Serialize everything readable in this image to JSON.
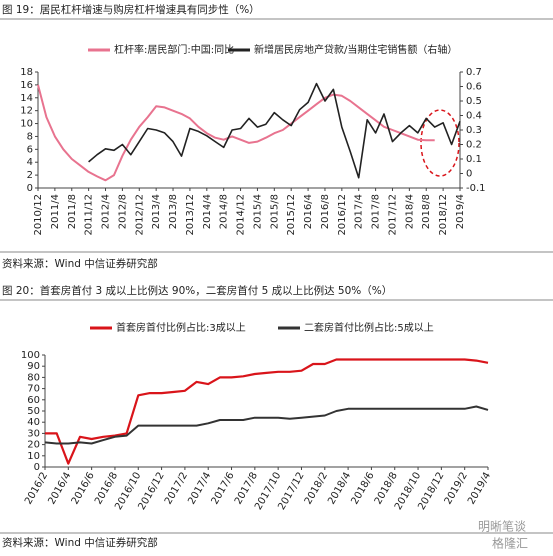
{
  "chart_data": [
    {
      "type": "line",
      "title": "图 19：居民杠杆增速与购房杠杆增速具有同步性（%）",
      "source": "资料来源：Wind 中信证券研究部",
      "categories": [
        "2010/12",
        null,
        "2011/4",
        null,
        "2011/8",
        null,
        "2011/12",
        null,
        "2012/4",
        null,
        "2012/8",
        null,
        "2012/12",
        null,
        "2013/4",
        null,
        "2013/8",
        null,
        "2013/12",
        null,
        "2014/4",
        null,
        "2014/8",
        null,
        "2014/12",
        null,
        "2015/4",
        null,
        "2015/8",
        null,
        "2015/12",
        null,
        "2016/4",
        null,
        "2016/8",
        null,
        "2016/12",
        null,
        "2017/4",
        null,
        "2017/8",
        null,
        "2017/12",
        null,
        "2018/4",
        null,
        "2018/8",
        null,
        "2018/12",
        null,
        "2019/4"
      ],
      "series": [
        {
          "name": "杠杆率:居民部门:中国:同比",
          "color": "#e8738f",
          "values": [
            16,
            11,
            8,
            6,
            4.5,
            3.5,
            2.5,
            1.8,
            1.2,
            2,
            5,
            7.5,
            9.5,
            11,
            12.7,
            12.5,
            12,
            11.5,
            10.8,
            9.5,
            8.5,
            7.8,
            7.5,
            8,
            7.5,
            7,
            7.2,
            7.8,
            8.5,
            9,
            10,
            11,
            12,
            13,
            14,
            14.5,
            14.3,
            13.5,
            12.5,
            11.5,
            10.5,
            9.5,
            9,
            8.5,
            8,
            7.5,
            7.4,
            7.4,
            null,
            null,
            null
          ]
        },
        {
          "name": "新增居民房地产贷款/当期住宅销售额（右轴）",
          "color": "#222222",
          "axis": "y2",
          "values": [
            null,
            null,
            null,
            null,
            null,
            null,
            0.08,
            0.13,
            0.17,
            0.16,
            0.2,
            0.13,
            0.22,
            0.31,
            0.3,
            0.28,
            0.22,
            0.12,
            0.31,
            0.29,
            0.26,
            0.22,
            0.18,
            0.3,
            0.31,
            0.38,
            0.32,
            0.34,
            0.42,
            0.37,
            0.33,
            0.44,
            0.49,
            0.62,
            0.5,
            0.58,
            0.32,
            0.15,
            -0.03,
            0.37,
            0.28,
            0.41,
            0.22,
            0.28,
            0.33,
            0.28,
            0.38,
            0.32,
            0.35,
            0.2,
            0.36
          ]
        }
      ],
      "ylim": [
        0,
        18
      ],
      "yticks": [
        0,
        2,
        4,
        6,
        8,
        10,
        12,
        14,
        16,
        18
      ],
      "y2lim": [
        -0.1,
        0.7
      ],
      "y2ticks": [
        -0.1,
        0,
        0.1,
        0.2,
        0.3,
        0.4,
        0.5,
        0.6,
        0.7
      ]
    },
    {
      "type": "line",
      "title": "图 20：首套房首付 3 成以上比例达 90%，二套房首付 5 成以上比例达 50%（%）",
      "source": "资料来源：Wind 中信证券研究部",
      "annotations": [
        "明晰笔谈",
        "格隆汇"
      ],
      "categories": [
        "2016/2",
        null,
        "2016/4",
        null,
        "2016/6",
        null,
        "2016/8",
        null,
        "2016/10",
        null,
        "2016/12",
        null,
        "2017/2",
        null,
        "2017/4",
        null,
        "2017/6",
        null,
        "2017/8",
        null,
        "2017/10",
        null,
        "2017/12",
        null,
        "2018/2",
        null,
        "2018/4",
        null,
        "2018/6",
        null,
        "2018/8",
        null,
        "2018/10",
        null,
        "2018/12",
        null,
        "2019/2",
        null,
        "2019/4"
      ],
      "series": [
        {
          "name": "首套房首付比例占比:3成以上",
          "color": "#d9141a",
          "values": [
            30,
            30,
            3,
            27,
            25,
            27,
            28,
            30,
            64,
            66,
            66,
            67,
            68,
            76,
            74,
            80,
            80,
            81,
            83,
            84,
            85,
            85,
            86,
            92,
            92,
            96,
            96,
            96,
            96,
            96,
            96,
            96,
            96,
            96,
            96,
            96,
            96,
            95,
            93
          ]
        },
        {
          "name": "二套房首付比例占比:5成以上",
          "color": "#333333",
          "values": [
            22,
            21,
            21,
            22,
            21,
            24,
            27,
            28,
            37,
            37,
            37,
            37,
            37,
            37,
            39,
            42,
            42,
            42,
            44,
            44,
            44,
            43,
            44,
            45,
            46,
            50,
            52,
            52,
            52,
            52,
            52,
            52,
            52,
            52,
            52,
            52,
            52,
            54,
            51
          ]
        }
      ],
      "ylim": [
        0,
        100
      ],
      "yticks": [
        0,
        10,
        20,
        30,
        40,
        50,
        60,
        70,
        80,
        90,
        100
      ]
    }
  ]
}
